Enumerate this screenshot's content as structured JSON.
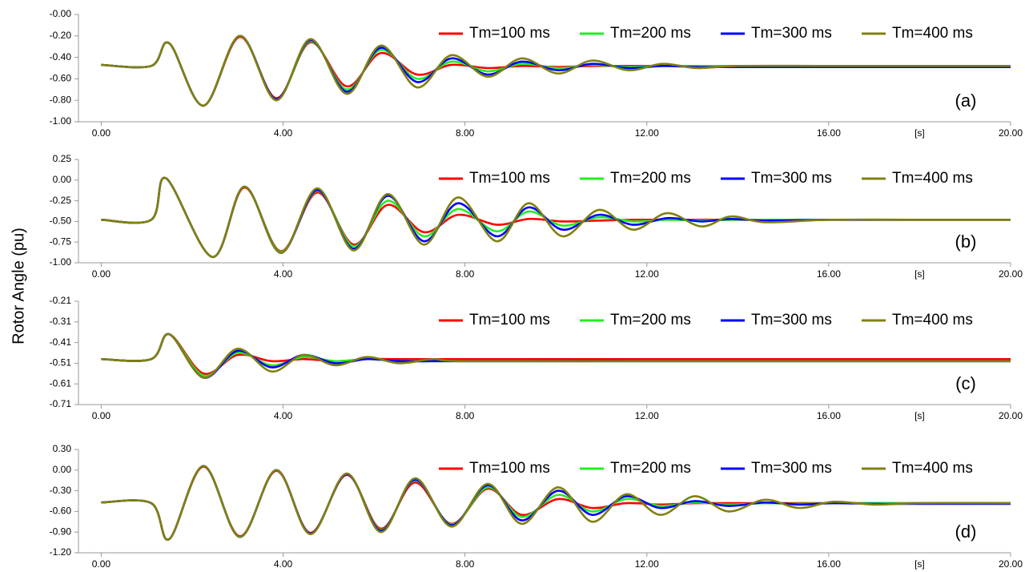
{
  "y_label": "Rotor Angle (pu)",
  "chart_data": [
    {
      "type": "line",
      "annotation": "(a)",
      "xlabel": "[s]",
      "x": [
        0,
        1.1,
        1.5,
        2.25,
        3.05,
        3.85,
        4.6,
        5.4,
        6.15,
        6.95,
        7.7,
        8.5,
        9.25,
        10.05,
        10.8,
        11.6,
        12.35,
        13.1,
        14,
        16,
        18,
        20
      ],
      "xlim": [
        -0.5,
        20
      ],
      "xticks": [
        {
          "value": 0,
          "label": "0.00"
        },
        {
          "value": 4,
          "label": "4.00"
        },
        {
          "value": 8,
          "label": "8.00"
        },
        {
          "value": 12,
          "label": "12.00"
        },
        {
          "value": 16,
          "label": "16.00"
        },
        {
          "value": 20,
          "label": "20.00"
        }
      ],
      "ylim": [
        -1,
        0
      ],
      "yticks": [
        {
          "value": 0,
          "label": "-0.00"
        },
        {
          "value": -0.2,
          "label": "-0.20"
        },
        {
          "value": -0.4,
          "label": "-0.40"
        },
        {
          "value": -0.6,
          "label": "-0.60"
        },
        {
          "value": -0.8,
          "label": "-0.80"
        },
        {
          "value": -1,
          "label": "-1.00"
        }
      ],
      "series": [
        {
          "name": "Tm=100 ms",
          "color": "#ff0000",
          "values": [
            -0.47,
            -0.48,
            -0.27,
            -0.85,
            -0.21,
            -0.78,
            -0.26,
            -0.67,
            -0.36,
            -0.56,
            -0.47,
            -0.5,
            -0.48,
            -0.49,
            -0.48,
            -0.48,
            -0.48,
            -0.48,
            -0.48,
            -0.48,
            -0.48,
            -0.48
          ]
        },
        {
          "name": "Tm=200 ms",
          "color": "#22ee22",
          "values": [
            -0.47,
            -0.48,
            -0.27,
            -0.85,
            -0.2,
            -0.79,
            -0.25,
            -0.7,
            -0.33,
            -0.6,
            -0.44,
            -0.53,
            -0.46,
            -0.5,
            -0.47,
            -0.49,
            -0.48,
            -0.48,
            -0.48,
            -0.48,
            -0.48,
            -0.48
          ]
        },
        {
          "name": "Tm=300 ms",
          "color": "#0000ff",
          "values": [
            -0.47,
            -0.48,
            -0.27,
            -0.85,
            -0.2,
            -0.79,
            -0.24,
            -0.72,
            -0.31,
            -0.63,
            -0.41,
            -0.56,
            -0.44,
            -0.52,
            -0.46,
            -0.5,
            -0.48,
            -0.49,
            -0.49,
            -0.49,
            -0.49,
            -0.49
          ]
        },
        {
          "name": "Tm=400 ms",
          "color": "#808010",
          "values": [
            -0.47,
            -0.48,
            -0.27,
            -0.85,
            -0.2,
            -0.8,
            -0.23,
            -0.74,
            -0.29,
            -0.68,
            -0.38,
            -0.58,
            -0.41,
            -0.55,
            -0.43,
            -0.52,
            -0.46,
            -0.5,
            -0.48,
            -0.48,
            -0.48,
            -0.48
          ]
        }
      ]
    },
    {
      "type": "line",
      "annotation": "(b)",
      "xlabel": "[s]",
      "x": [
        0,
        1.1,
        1.43,
        2.45,
        3.15,
        3.95,
        4.75,
        5.55,
        6.3,
        7.1,
        7.85,
        8.7,
        9.4,
        10.15,
        10.95,
        11.7,
        12.45,
        13.2,
        13.85,
        14.6,
        16,
        18,
        20
      ],
      "xlim": [
        -0.5,
        20
      ],
      "xticks": [
        {
          "value": 0,
          "label": "0.00"
        },
        {
          "value": 4,
          "label": "4.00"
        },
        {
          "value": 8,
          "label": "8.00"
        },
        {
          "value": 12,
          "label": "12.00"
        },
        {
          "value": 16,
          "label": "16.00"
        },
        {
          "value": 20,
          "label": "20.00"
        }
      ],
      "ylim": [
        -1,
        0.25
      ],
      "yticks": [
        {
          "value": 0.25,
          "label": "0.25"
        },
        {
          "value": 0,
          "label": "0.00"
        },
        {
          "value": -0.25,
          "label": "-0.25"
        },
        {
          "value": -0.5,
          "label": "-0.50"
        },
        {
          "value": -0.75,
          "label": "-0.75"
        },
        {
          "value": -1,
          "label": "-1.00"
        }
      ],
      "series": [
        {
          "name": "Tm=100 ms",
          "color": "#ff0000",
          "values": [
            -0.48,
            -0.48,
            0.02,
            -0.93,
            -0.09,
            -0.86,
            -0.15,
            -0.78,
            -0.3,
            -0.63,
            -0.42,
            -0.54,
            -0.47,
            -0.5,
            -0.49,
            -0.48,
            -0.48,
            -0.48,
            -0.48,
            -0.48,
            -0.48,
            -0.48,
            -0.48
          ]
        },
        {
          "name": "Tm=200 ms",
          "color": "#22ee22",
          "values": [
            -0.48,
            -0.48,
            0.02,
            -0.93,
            -0.08,
            -0.87,
            -0.13,
            -0.8,
            -0.25,
            -0.68,
            -0.35,
            -0.62,
            -0.38,
            -0.55,
            -0.45,
            -0.5,
            -0.48,
            -0.49,
            -0.48,
            -0.48,
            -0.48,
            -0.48,
            -0.48
          ]
        },
        {
          "name": "Tm=300 ms",
          "color": "#0000ff",
          "values": [
            -0.48,
            -0.48,
            0.02,
            -0.93,
            -0.08,
            -0.88,
            -0.12,
            -0.83,
            -0.19,
            -0.74,
            -0.28,
            -0.68,
            -0.33,
            -0.6,
            -0.42,
            -0.54,
            -0.46,
            -0.5,
            -0.47,
            -0.49,
            -0.48,
            -0.48,
            -0.48
          ]
        },
        {
          "name": "Tm=400 ms",
          "color": "#808010",
          "values": [
            -0.48,
            -0.48,
            0.02,
            -0.93,
            -0.08,
            -0.88,
            -0.1,
            -0.85,
            -0.17,
            -0.78,
            -0.21,
            -0.74,
            -0.28,
            -0.68,
            -0.36,
            -0.6,
            -0.4,
            -0.56,
            -0.44,
            -0.51,
            -0.48,
            -0.48,
            -0.48
          ]
        }
      ]
    },
    {
      "type": "line",
      "annotation": "(c)",
      "xlabel": "[s]",
      "x": [
        0,
        1.1,
        1.5,
        2.25,
        3.0,
        3.75,
        4.45,
        5.15,
        5.85,
        6.55,
        7.3,
        8,
        12,
        16,
        20
      ],
      "xlim": [
        -0.5,
        20
      ],
      "xticks": [
        {
          "value": 0,
          "label": "0.00"
        },
        {
          "value": 4,
          "label": "4.00"
        },
        {
          "value": 8,
          "label": "8.00"
        },
        {
          "value": 12,
          "label": "12.00"
        },
        {
          "value": 16,
          "label": "16.00"
        },
        {
          "value": 20,
          "label": "20.00"
        }
      ],
      "ylim": [
        -0.71,
        -0.21
      ],
      "yticks": [
        -0.21,
        -0.31,
        -0.41,
        -0.51,
        -0.61,
        -0.71
      ],
      "series": [
        {
          "name": "Tm=100 ms",
          "color": "#ff0000",
          "values": [
            -0.49,
            -0.49,
            -0.37,
            -0.56,
            -0.47,
            -0.5,
            -0.49,
            -0.5,
            -0.49,
            -0.49,
            -0.49,
            -0.49,
            -0.49,
            -0.49,
            -0.49
          ]
        },
        {
          "name": "Tm=200 ms",
          "color": "#22ee22",
          "values": [
            -0.49,
            -0.49,
            -0.37,
            -0.57,
            -0.46,
            -0.52,
            -0.48,
            -0.5,
            -0.49,
            -0.5,
            -0.5,
            -0.5,
            -0.5,
            -0.5,
            -0.5
          ]
        },
        {
          "name": "Tm=300 ms",
          "color": "#0000ff",
          "values": [
            -0.49,
            -0.49,
            -0.37,
            -0.58,
            -0.45,
            -0.53,
            -0.47,
            -0.51,
            -0.49,
            -0.5,
            -0.5,
            -0.5,
            -0.5,
            -0.5,
            -0.5
          ]
        },
        {
          "name": "Tm=400 ms",
          "color": "#808010",
          "values": [
            -0.49,
            -0.49,
            -0.37,
            -0.58,
            -0.44,
            -0.55,
            -0.47,
            -0.52,
            -0.48,
            -0.51,
            -0.49,
            -0.5,
            -0.5,
            -0.5,
            -0.5
          ]
        }
      ]
    },
    {
      "type": "line",
      "annotation": "(d)",
      "xlabel": "[s]",
      "x": [
        0,
        1.1,
        1.5,
        2.25,
        3.05,
        3.85,
        4.6,
        5.4,
        6.15,
        6.9,
        7.7,
        8.5,
        9.25,
        10.05,
        10.8,
        11.55,
        12.3,
        13.05,
        13.8,
        14.6,
        15.35,
        16.1,
        17,
        18,
        20
      ],
      "xlim": [
        -0.5,
        20
      ],
      "xticks": [
        {
          "value": 0,
          "label": "0.00"
        },
        {
          "value": 4,
          "label": "4.00"
        },
        {
          "value": 8,
          "label": "8.00"
        },
        {
          "value": 12,
          "label": "12.00"
        },
        {
          "value": 16,
          "label": "16.00"
        },
        {
          "value": 20,
          "label": "20.00"
        }
      ],
      "ylim": [
        -1.2,
        0.3
      ],
      "yticks": [
        {
          "value": 0.3,
          "label": "0.30"
        },
        {
          "value": 0,
          "label": "0.00"
        },
        {
          "value": -0.3,
          "label": "-0.30"
        },
        {
          "value": -0.6,
          "label": "-0.60"
        },
        {
          "value": -0.9,
          "label": "-0.90"
        },
        {
          "value": -1.2,
          "label": "-1.20"
        }
      ],
      "series": [
        {
          "name": "Tm=100 ms",
          "color": "#ff0000",
          "values": [
            -0.47,
            -0.48,
            -1.0,
            0.05,
            -0.96,
            -0.01,
            -0.91,
            -0.07,
            -0.85,
            -0.18,
            -0.78,
            -0.27,
            -0.65,
            -0.42,
            -0.55,
            -0.48,
            -0.5,
            -0.48,
            -0.48,
            -0.48,
            -0.48,
            -0.48,
            -0.48,
            -0.48,
            -0.48
          ]
        },
        {
          "name": "Tm=200 ms",
          "color": "#22ee22",
          "values": [
            -0.47,
            -0.48,
            -1.0,
            0.06,
            -0.97,
            0.0,
            -0.92,
            -0.06,
            -0.87,
            -0.15,
            -0.79,
            -0.25,
            -0.68,
            -0.36,
            -0.6,
            -0.42,
            -0.52,
            -0.47,
            -0.5,
            -0.48,
            -0.49,
            -0.48,
            -0.48,
            -0.48,
            -0.48
          ]
        },
        {
          "name": "Tm=300 ms",
          "color": "#0000ff",
          "values": [
            -0.47,
            -0.48,
            -1.0,
            0.06,
            -0.97,
            0.0,
            -0.92,
            -0.06,
            -0.88,
            -0.14,
            -0.8,
            -0.22,
            -0.73,
            -0.3,
            -0.65,
            -0.38,
            -0.55,
            -0.45,
            -0.52,
            -0.47,
            -0.5,
            -0.48,
            -0.49,
            -0.49,
            -0.49
          ]
        },
        {
          "name": "Tm=400 ms",
          "color": "#808010",
          "values": [
            -0.47,
            -0.48,
            -1.0,
            0.06,
            -0.97,
            0.0,
            -0.93,
            -0.05,
            -0.9,
            -0.12,
            -0.82,
            -0.2,
            -0.78,
            -0.25,
            -0.75,
            -0.35,
            -0.65,
            -0.38,
            -0.6,
            -0.43,
            -0.55,
            -0.46,
            -0.5,
            -0.48,
            -0.48
          ]
        }
      ]
    }
  ]
}
